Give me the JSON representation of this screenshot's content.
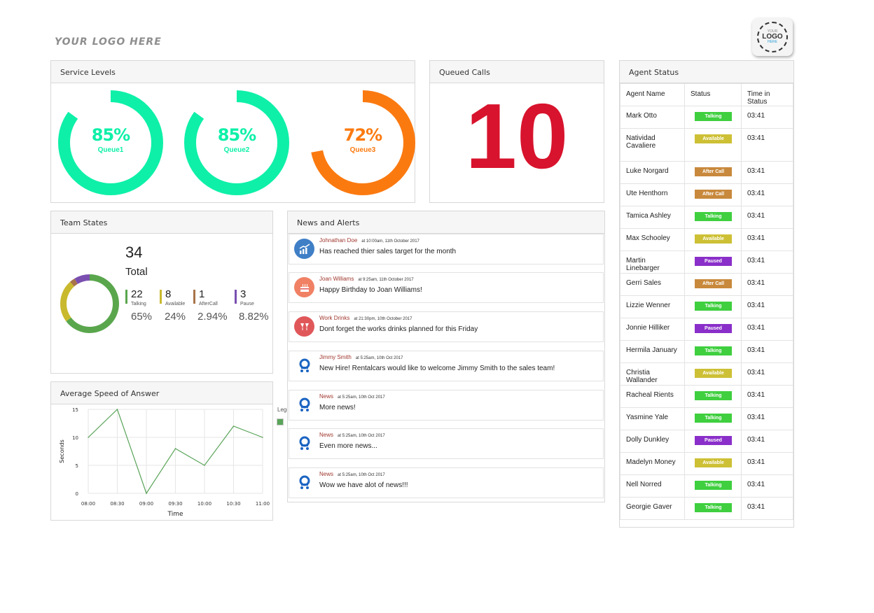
{
  "header": {
    "logo_text": "YOUR LOGO HERE",
    "badge": {
      "line1": "YOUR",
      "line2": "LOGO",
      "line3": "HERE"
    }
  },
  "service_levels": {
    "title": "Service Levels",
    "queues": [
      {
        "percent": "85%",
        "name": "Queue1",
        "value": 0.85,
        "color": "#0ef0a8"
      },
      {
        "percent": "85%",
        "name": "Queue2",
        "value": 0.85,
        "color": "#0ef0a8"
      },
      {
        "percent": "72%",
        "name": "Queue3",
        "value": 0.72,
        "color": "#fb7a10"
      }
    ]
  },
  "queued_calls": {
    "title": "Queued Calls",
    "value": "10"
  },
  "team_states": {
    "title": "Team States",
    "total": "34",
    "total_label": "Total",
    "states": [
      {
        "count": "22",
        "label": "Talking",
        "percent": "65%",
        "value": 22,
        "color": "#5aa64d"
      },
      {
        "count": "8",
        "label": "Available",
        "percent": "24%",
        "value": 8,
        "color": "#c9b92e"
      },
      {
        "count": "1",
        "label": "AfterCall",
        "percent": "2.94%",
        "value": 1,
        "color": "#a87449"
      },
      {
        "count": "3",
        "label": "Pause",
        "percent": "8.82%",
        "value": 3,
        "color": "#7a4fb0"
      }
    ]
  },
  "avg_speed": {
    "title": "Average Speed of Answer",
    "legend_label": "Legend",
    "chart_data": {
      "type": "line",
      "x": [
        "08:00",
        "08:30",
        "09:00",
        "09:30",
        "10:00",
        "10:30",
        "11:00"
      ],
      "series": [
        {
          "values": [
            10,
            15,
            0,
            8,
            5,
            12,
            10
          ]
        }
      ],
      "xlabel": "Time",
      "ylabel": "Seconds",
      "ylim": [
        0,
        15
      ],
      "yticks": [
        "0",
        "5",
        "10",
        "15"
      ],
      "grid": true,
      "color": "#5aa45a"
    }
  },
  "news": {
    "title": "News and Alerts",
    "items": [
      {
        "author": "Johnathan Doe",
        "time": "at 10:00am, 11th October 2017",
        "message": "Has reached thier sales target for the month",
        "icon": "chart-up-icon",
        "icon_color": "#3f7fc6"
      },
      {
        "author": "Joan Williams",
        "time": "at 9:25am, 11th October 2017",
        "message": "Happy Birthday to Joan Williams!",
        "icon": "birthday-cake-icon",
        "icon_color": "#f08164"
      },
      {
        "author": "Work Drinks",
        "time": "at 21:30pm, 10th October 2017",
        "message": "Dont forget the works drinks planned for this Friday",
        "icon": "drinks-icon",
        "icon_color": "#e0575a"
      },
      {
        "author": "Jimmy Smith",
        "time": "at 5:25am, 10th Oct 2017",
        "message": "New Hire! Rentalcars would like to welcome Jimmy Smith to the sales team!",
        "icon": "company-logo-icon",
        "icon_color": "#1b64c2"
      },
      {
        "author": "News",
        "time": "at 5:25am, 10th Oct 2017",
        "message": "More news!",
        "icon": "company-logo-icon",
        "icon_color": "#1b64c2"
      },
      {
        "author": "News",
        "time": "at 5:25am, 10th Oct 2017",
        "message": "Even more news...",
        "icon": "company-logo-icon",
        "icon_color": "#1b64c2"
      },
      {
        "author": "News",
        "time": "at 5:25am, 10th Oct 2017",
        "message": "Wow we have alot of news!!!",
        "icon": "company-logo-icon",
        "icon_color": "#1b64c2"
      }
    ]
  },
  "agents": {
    "title": "Agent Status",
    "columns": [
      "Agent Name",
      "Status",
      "Time in Status"
    ],
    "status_colors": {
      "Talking": "#3fcf3f",
      "Available": "#cdc035",
      "After Call": "#c8893c",
      "Paused": "#8a2fc9"
    },
    "rows": [
      {
        "name": "Mark Otto",
        "status": "Talking",
        "time": "03:41"
      },
      {
        "name": "Natividad Cavaliere",
        "status": "Available",
        "time": "03:41"
      },
      {
        "name": "Luke Norgard",
        "status": "After Call",
        "time": "03:41"
      },
      {
        "name": "Ute Henthorn",
        "status": "After Call",
        "time": "03:41"
      },
      {
        "name": "Tamica Ashley",
        "status": "Talking",
        "time": "03:41"
      },
      {
        "name": "Max Schooley",
        "status": "Available",
        "time": "03:41"
      },
      {
        "name": "Martin Linebarger",
        "status": "Paused",
        "time": "03:41"
      },
      {
        "name": "Gerri Sales",
        "status": "After Call",
        "time": "03:41"
      },
      {
        "name": "Lizzie Wenner",
        "status": "Talking",
        "time": "03:41"
      },
      {
        "name": "Jonnie Hilliker",
        "status": "Paused",
        "time": "03:41"
      },
      {
        "name": "Hermila January",
        "status": "Talking",
        "time": "03:41"
      },
      {
        "name": "Christia Wallander",
        "status": "Available",
        "time": "03:41"
      },
      {
        "name": "Racheal Rients",
        "status": "Talking",
        "time": "03:41"
      },
      {
        "name": "Yasmine Yale",
        "status": "Talking",
        "time": "03:41"
      },
      {
        "name": "Dolly Dunkley",
        "status": "Paused",
        "time": "03:41"
      },
      {
        "name": "Madelyn Money",
        "status": "Available",
        "time": "03:41"
      },
      {
        "name": "Nell Norred",
        "status": "Talking",
        "time": "03:41"
      },
      {
        "name": "Georgie Gaver",
        "status": "Talking",
        "time": "03:41"
      }
    ]
  }
}
